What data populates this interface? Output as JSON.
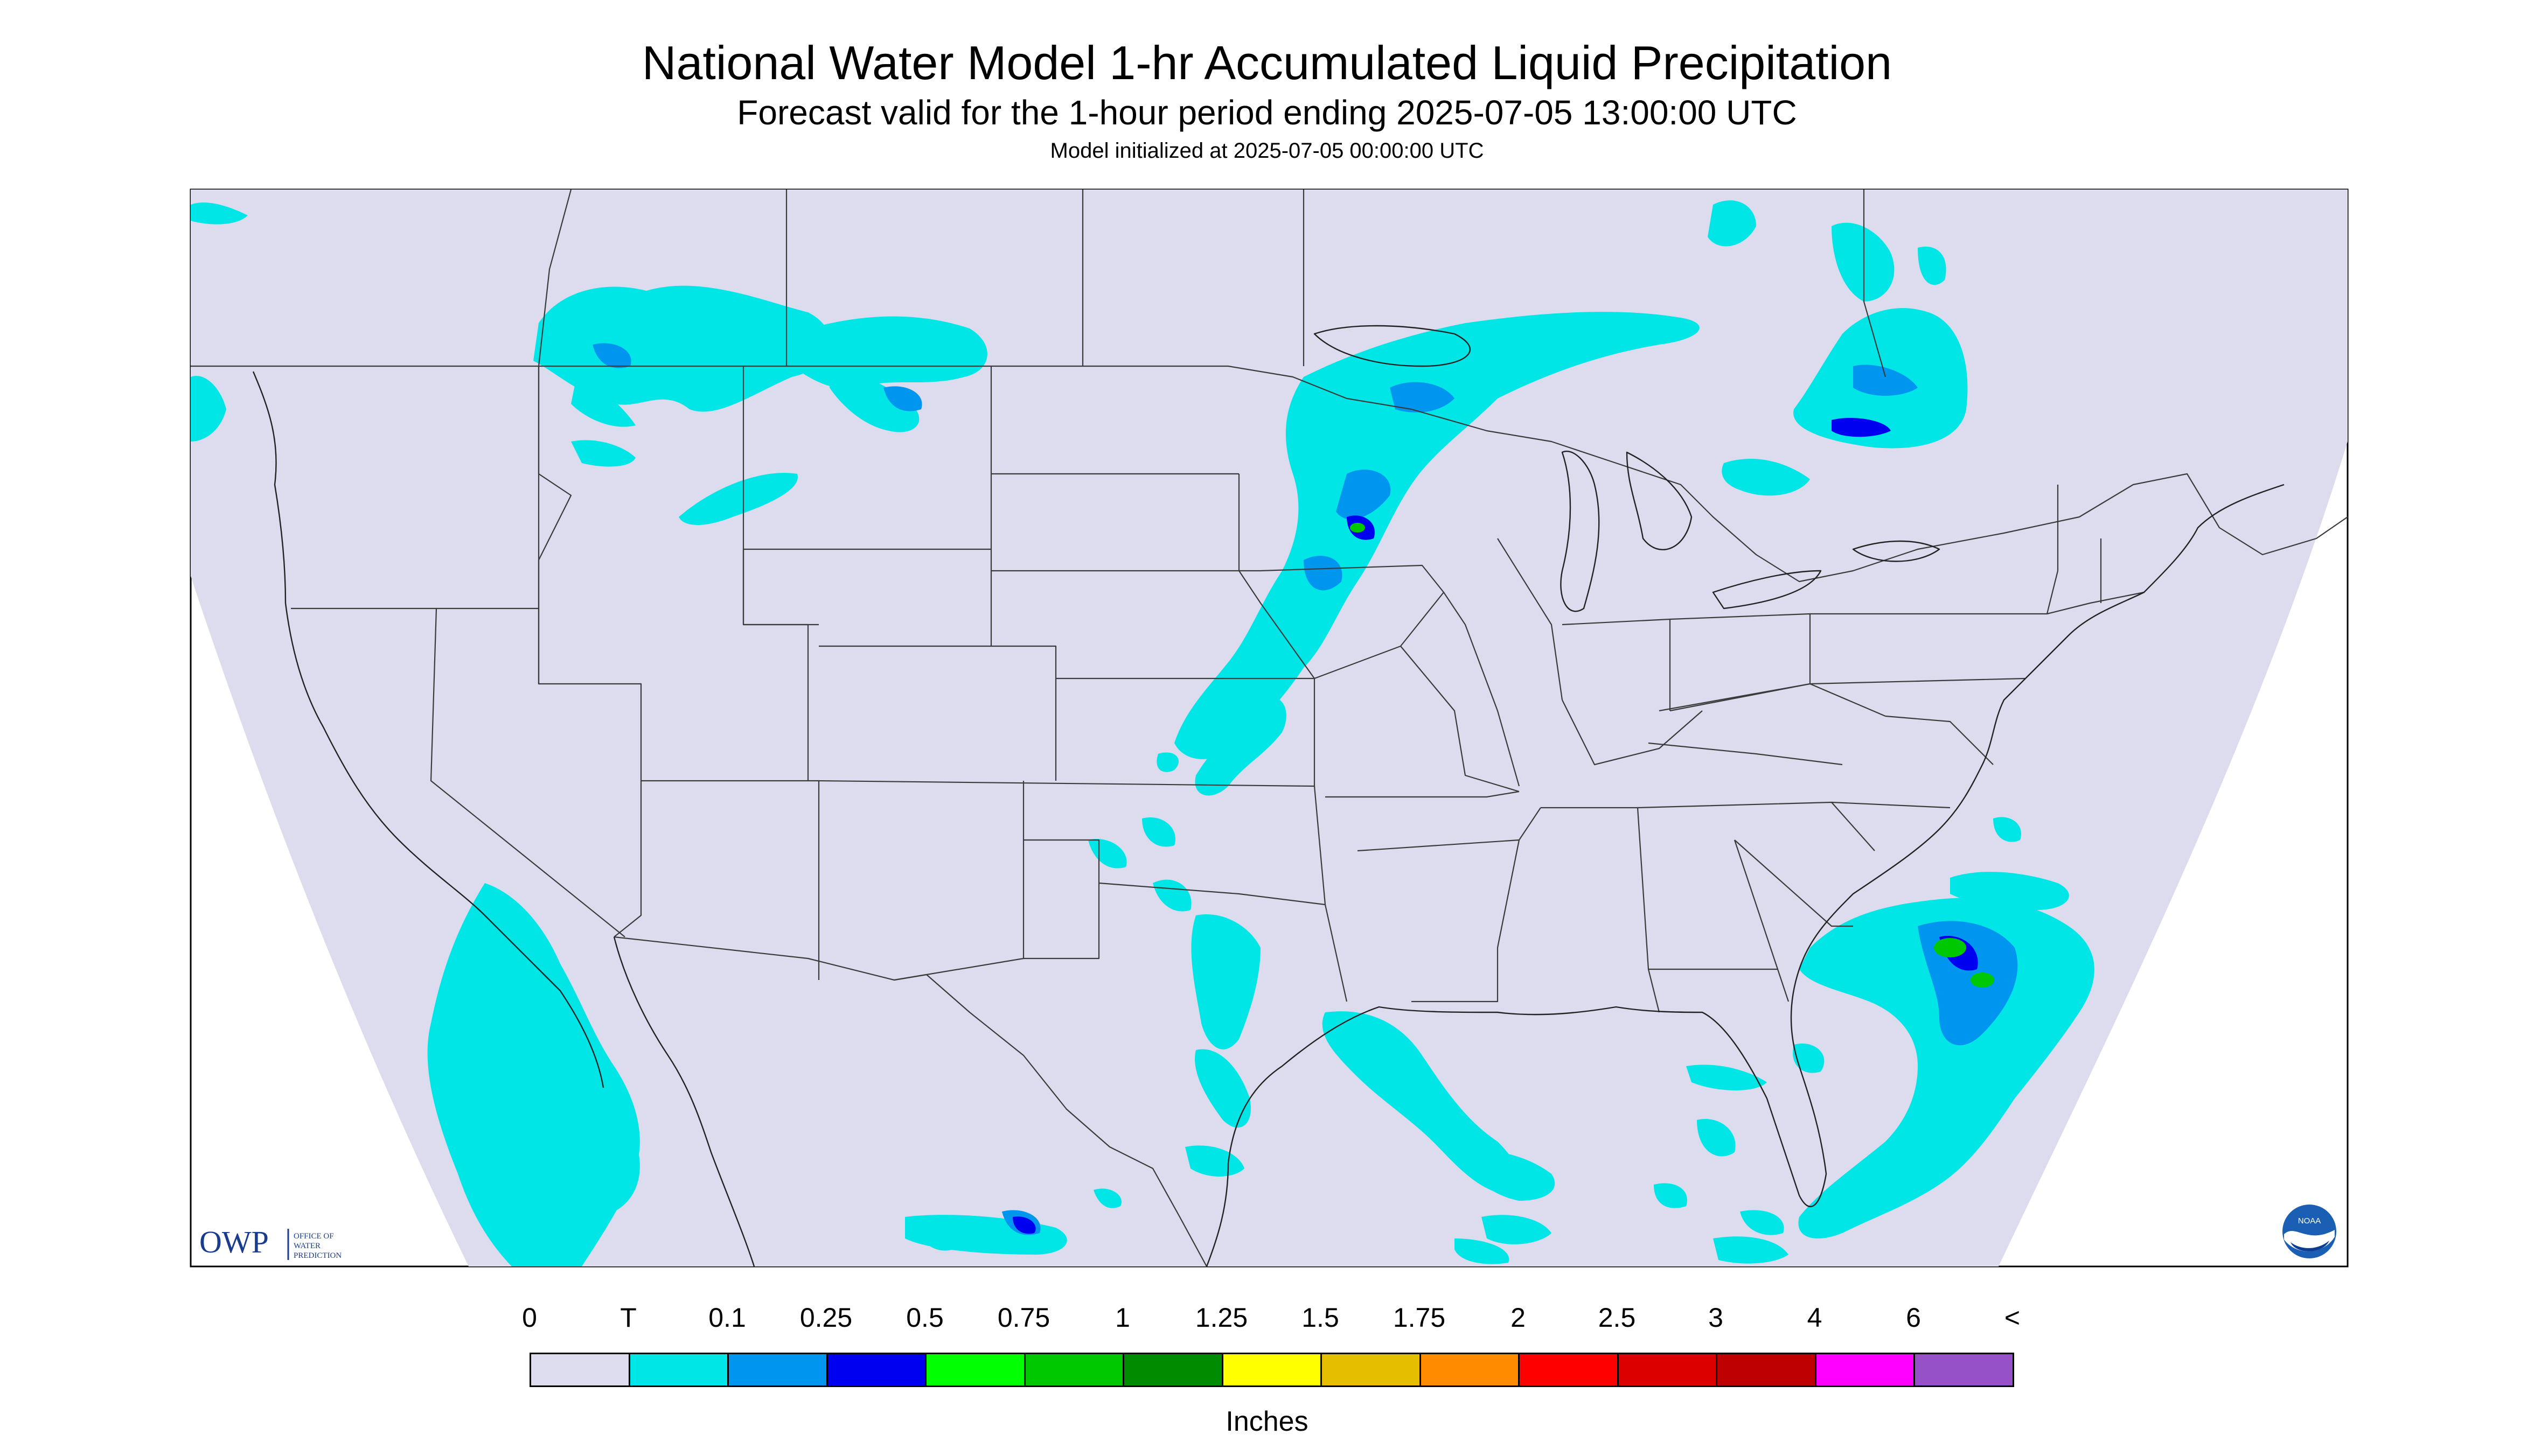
{
  "title": "National Water Model 1-hr Accumulated Liquid Precipitation",
  "subtitle": "Forecast valid for the 1-hour period ending 2025-07-05 13:00:00 UTC",
  "init_line": "Model initialized at 2025-07-05 00:00:00 UTC",
  "logos": {
    "owp_abbrev": "OWP",
    "owp_full": "OFFICE OF WATER PREDICTION",
    "noaa": "NOAA"
  },
  "legend": {
    "units": "Inches",
    "labels": [
      "0",
      "T",
      "0.1",
      "0.25",
      "0.5",
      "0.75",
      "1",
      "1.25",
      "1.5",
      "1.75",
      "2",
      "2.5",
      "3",
      "4",
      "6",
      "<"
    ],
    "colors": [
      "#dcdcee",
      "#00e6e6",
      "#0096f0",
      "#0000f0",
      "#00ff00",
      "#00c800",
      "#008c00",
      "#ffff00",
      "#e6be00",
      "#ff8c00",
      "#ff0000",
      "#dc0000",
      "#be0000",
      "#ff00ff",
      "#9650c8"
    ]
  },
  "colors": {
    "background": "#dcdcee",
    "trace": "#00e6e6",
    "light": "#0096f0",
    "moderate": "#0000f0",
    "heavy": "#00c800",
    "boundary": "#3a3a3a"
  }
}
